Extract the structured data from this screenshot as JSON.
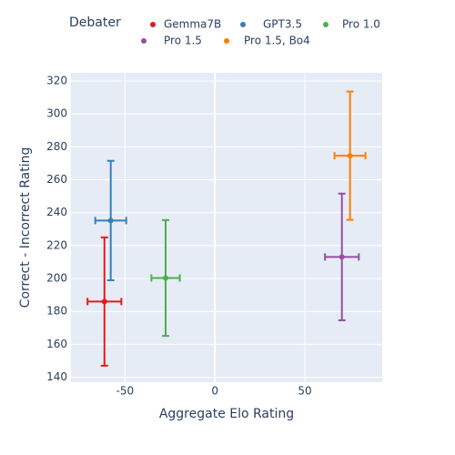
{
  "chart_data": {
    "type": "scatter",
    "xlabel": "Aggregate Elo Rating",
    "ylabel": "Correct - Incorrect Rating",
    "legend_title": "Debater",
    "xlim": [
      -80,
      93
    ],
    "xticks": [
      -50,
      0,
      50
    ],
    "ylim": [
      137,
      325
    ],
    "yticks": [
      140,
      160,
      180,
      200,
      220,
      240,
      260,
      280,
      300,
      320
    ],
    "grid": true,
    "legend": "top",
    "series": [
      {
        "name": "Gemma7B",
        "color": "#e41a1c",
        "x": -61.4,
        "y": 186,
        "error_x": 9.4,
        "error_y": 39
      },
      {
        "name": "GPT3.5",
        "color": "#377eb8",
        "x": -57.9,
        "y": 235.2,
        "error_x": 8.6,
        "error_y": 36.3
      },
      {
        "name": "Pro 1.0",
        "color": "#4daf4a",
        "x": -27.4,
        "y": 200.3,
        "error_x": 7.9,
        "error_y": 35.2
      },
      {
        "name": "Pro 1.5",
        "color": "#984ea3",
        "x": 70.6,
        "y": 213.1,
        "error_x": 9.4,
        "error_y": 38.5
      },
      {
        "name": "Pro 1.5, Bo4",
        "color": "#ff7f00",
        "x": 75.1,
        "y": 274.6,
        "error_x": 8.6,
        "error_y": 39
      }
    ]
  }
}
